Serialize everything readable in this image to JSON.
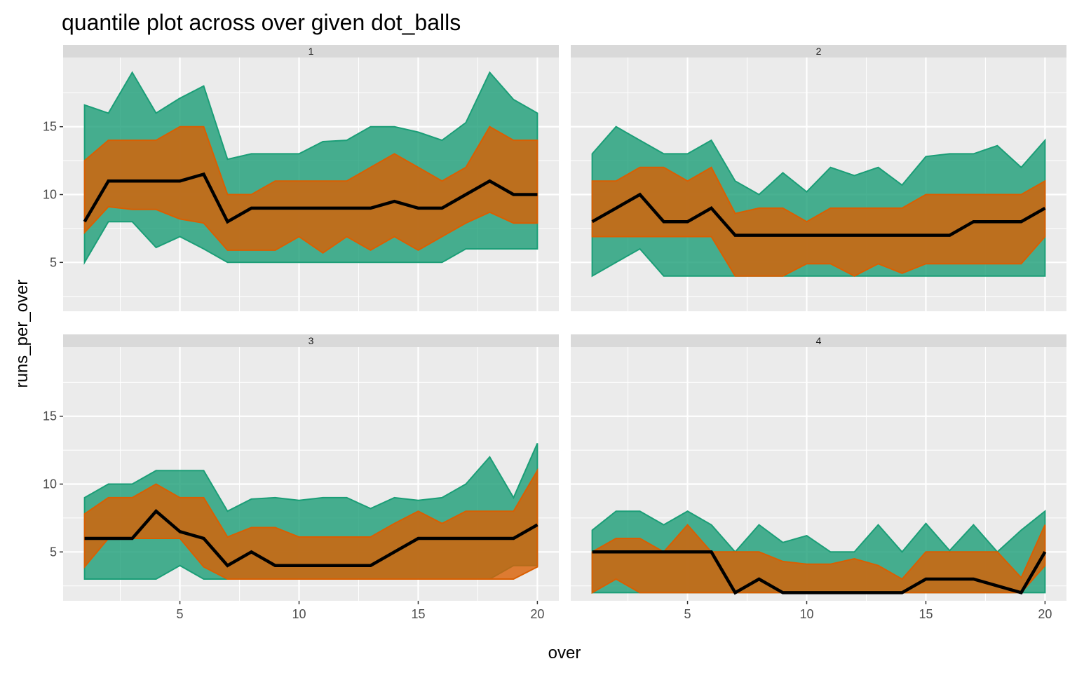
{
  "chart_data": {
    "type": "area",
    "title": "quantile plot across over given dot_balls",
    "xlabel": "over",
    "ylabel": "runs_per_over",
    "xlim": [
      0.1,
      20.9
    ],
    "ylim": [
      1.4,
      20.1
    ],
    "x_ticks": [
      5,
      10,
      15,
      20
    ],
    "y_ticks": [
      5,
      10,
      15
    ],
    "grid": true,
    "legend": "none",
    "colors": {
      "outer_band": "#1B9E77",
      "inner_band": "#D95F02",
      "median_line": "#000000",
      "panel_background": "#EBEBEB",
      "grid": "#FFFFFF",
      "strip": "#D9D9D9"
    },
    "facets": [
      {
        "label": "1",
        "x": [
          1,
          2,
          3,
          4,
          5,
          6,
          7,
          8,
          9,
          10,
          11,
          12,
          13,
          14,
          15,
          16,
          17,
          18,
          19,
          20
        ],
        "outer_low": [
          5,
          8,
          8,
          6.1,
          6.9,
          6,
          5,
          5,
          5,
          5,
          5,
          5,
          5,
          5,
          5,
          5,
          6,
          6,
          6,
          6
        ],
        "inner_low": [
          7.2,
          9.1,
          8.9,
          8.9,
          8.2,
          7.9,
          5.9,
          5.9,
          5.9,
          6.9,
          5.7,
          6.9,
          5.9,
          6.9,
          5.9,
          6.9,
          7.9,
          8.7,
          7.9,
          7.9
        ],
        "median": [
          8,
          11,
          11,
          11,
          11,
          11.5,
          8,
          9,
          9,
          9,
          9,
          9,
          9,
          9.5,
          9,
          9,
          10,
          11,
          10,
          10
        ],
        "inner_high": [
          12.5,
          14,
          14,
          14,
          15,
          15,
          10,
          10,
          11,
          11,
          11,
          11,
          12,
          13,
          12,
          11,
          12,
          15,
          14,
          14
        ],
        "outer_high": [
          16.6,
          16,
          19,
          16,
          17.1,
          18,
          12.6,
          13,
          13,
          13,
          13.9,
          14,
          15,
          15,
          14.6,
          14,
          15.3,
          19,
          17,
          16
        ]
      },
      {
        "label": "2",
        "x": [
          1,
          2,
          3,
          4,
          5,
          6,
          7,
          8,
          9,
          10,
          11,
          12,
          13,
          14,
          15,
          16,
          17,
          18,
          19,
          20
        ],
        "outer_low": [
          4,
          5,
          6,
          4,
          4,
          4,
          4,
          4,
          4,
          4,
          4,
          4,
          4,
          4,
          4,
          4,
          4,
          4,
          4,
          4
        ],
        "inner_low": [
          6.9,
          6.9,
          6.9,
          6.9,
          6.9,
          6.9,
          4,
          4,
          4,
          4.9,
          4.9,
          4,
          4.9,
          4.2,
          4.9,
          4.9,
          4.9,
          4.9,
          4.9,
          6.9
        ],
        "median": [
          8,
          9,
          10,
          8,
          8,
          9,
          7,
          7,
          7,
          7,
          7,
          7,
          7,
          7,
          7,
          7,
          8,
          8,
          8,
          9
        ],
        "inner_high": [
          11,
          11,
          12,
          12,
          11,
          12,
          8.6,
          9,
          9,
          8,
          9,
          9,
          9,
          9,
          10,
          10,
          10,
          10,
          10,
          11
        ],
        "outer_high": [
          13,
          15,
          14,
          13,
          13,
          14,
          11,
          10,
          11.6,
          10.2,
          12,
          11.4,
          12,
          10.7,
          12.8,
          13,
          13,
          13.6,
          12,
          14
        ]
      },
      {
        "label": "3",
        "x": [
          1,
          2,
          3,
          4,
          5,
          6,
          7,
          8,
          9,
          10,
          11,
          12,
          13,
          14,
          15,
          16,
          17,
          18,
          19,
          20
        ],
        "outer_low": [
          3,
          3,
          3,
          3,
          4,
          3,
          3,
          3,
          3,
          3,
          3,
          3,
          3,
          3,
          3,
          3,
          3,
          3,
          4,
          4
        ],
        "inner_low": [
          3.9,
          6,
          6,
          6,
          6,
          3.9,
          3,
          3,
          3,
          3,
          3,
          3,
          3,
          3,
          3,
          3,
          3,
          3,
          3,
          3.9
        ],
        "median": [
          6,
          6,
          6,
          8,
          6.5,
          6,
          4,
          5,
          4,
          4,
          4,
          4,
          4,
          5,
          6,
          6,
          6,
          6,
          6,
          7
        ],
        "inner_high": [
          7.8,
          9,
          9,
          10,
          9,
          9,
          6.1,
          6.8,
          6.8,
          6.1,
          6.1,
          6.1,
          6.1,
          7.1,
          8,
          7.1,
          8,
          8,
          8,
          11
        ],
        "outer_high": [
          9,
          10,
          10,
          11,
          11,
          11,
          8,
          8.9,
          9,
          8.8,
          9,
          9,
          8.2,
          9,
          8.8,
          9,
          10,
          12,
          9,
          13
        ]
      },
      {
        "label": "4",
        "x": [
          1,
          2,
          3,
          4,
          5,
          6,
          7,
          8,
          9,
          10,
          11,
          12,
          13,
          14,
          15,
          16,
          17,
          18,
          19,
          20
        ],
        "outer_low": [
          2,
          2,
          2,
          2,
          2,
          2,
          2,
          2,
          2,
          2,
          2,
          2,
          2,
          2,
          2,
          2,
          2,
          2,
          2,
          2
        ],
        "inner_low": [
          2,
          3,
          2,
          2,
          2,
          2,
          2,
          2,
          2,
          2,
          2,
          2,
          2,
          2,
          2,
          2,
          2,
          2,
          2,
          4
        ],
        "median": [
          5,
          5,
          5,
          5,
          5,
          5,
          2,
          3,
          2,
          2,
          2,
          2,
          2,
          2,
          3,
          3,
          3,
          2.5,
          2,
          5
        ],
        "inner_high": [
          5,
          6,
          6,
          5,
          7,
          5,
          5,
          5,
          4.3,
          4.1,
          4.1,
          4.5,
          4,
          3,
          5,
          5,
          5,
          5,
          3.1,
          7
        ],
        "outer_high": [
          6.6,
          8,
          8,
          7,
          8,
          7,
          5,
          7,
          5.7,
          6.2,
          5,
          5,
          7,
          5,
          7.1,
          5.1,
          7,
          5,
          6.6,
          8
        ]
      }
    ]
  }
}
